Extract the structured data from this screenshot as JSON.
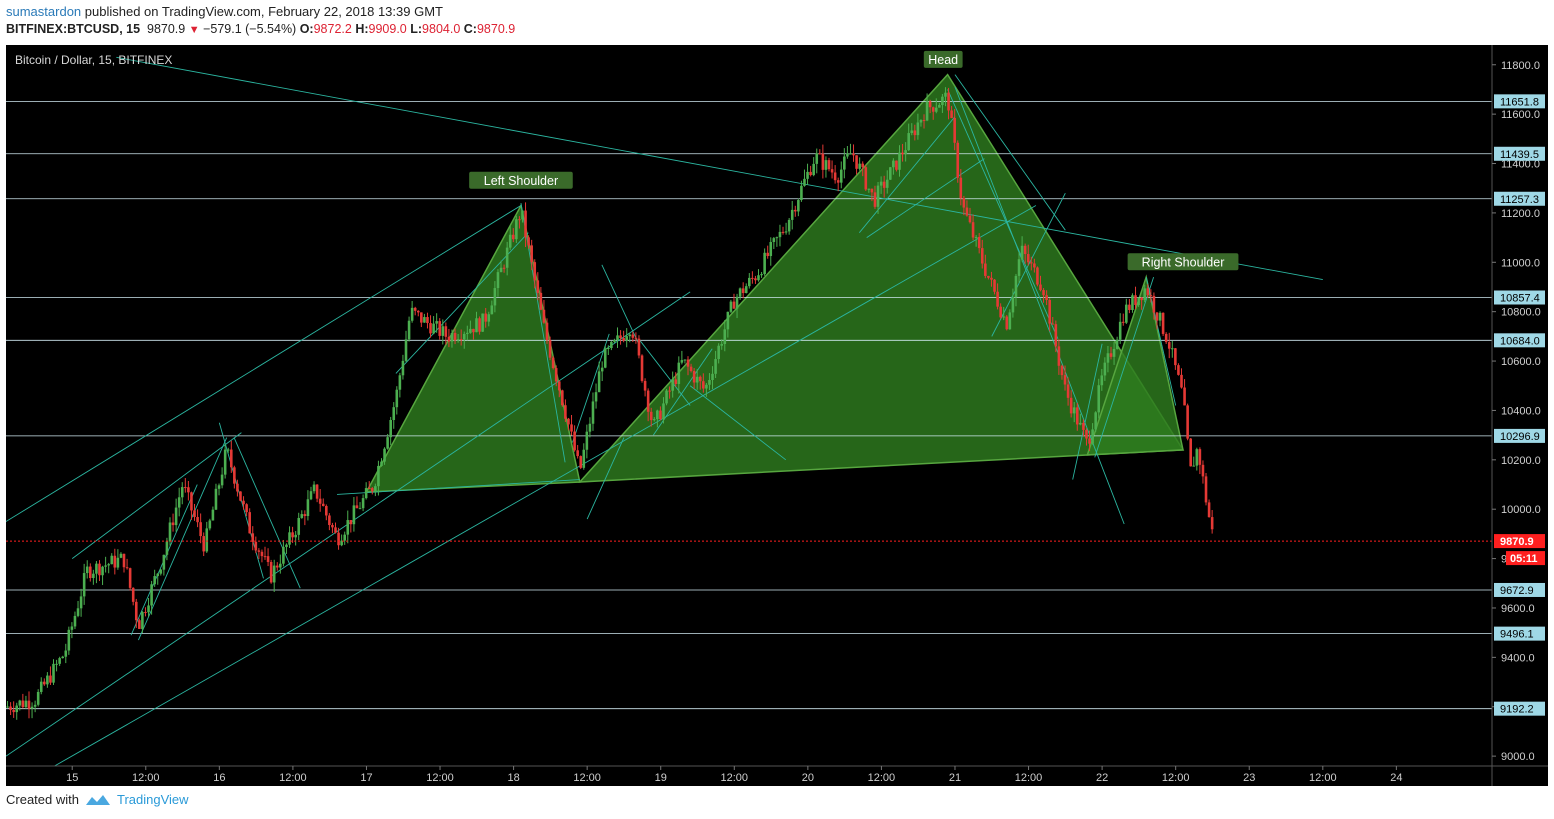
{
  "header": {
    "author": "sumastardon",
    "published_text": "published on TradingView.com, February 22, 2018 13:39 GMT",
    "symbol": "BITFINEX:BTCUSD, 15",
    "last": "9870.9",
    "arrow": "▼",
    "change": "−579.1 (−5.54%)",
    "o_label": "O:",
    "o_val": "9872.2",
    "h_label": "H:",
    "h_val": "9909.0",
    "l_label": "L:",
    "l_val": "9804.0",
    "c_label": "C:",
    "c_val": "9870.9"
  },
  "footer": {
    "created_with": "Created with",
    "brand": "TradingView"
  },
  "colors": {
    "background": "#000000",
    "up": "#4caf50",
    "down": "#e53935",
    "line": "#2bb5a0",
    "hline": "#cfe8f0",
    "pattern_fill": "#2e7d1e",
    "label_bg": "#3a6a2a",
    "price_tag": "#9fd8e6",
    "current_tag": "#ff1f1f"
  },
  "chart_data": {
    "type": "candlestick",
    "title": "Bitcoin / Dollar, 15, BITFINEX",
    "ylim": [
      8960,
      11880
    ],
    "yticks": [
      9000,
      9200,
      9400,
      9600,
      9800,
      10000,
      10200,
      10400,
      10600,
      10800,
      11000,
      11200,
      11400,
      11600,
      11800
    ],
    "ytick_labels": [
      "9000.0",
      "9200.0",
      "9400.0",
      "9600.0",
      "9800.0",
      "10000.0",
      "10200.0",
      "10400.0",
      "10600.0",
      "10800.0",
      "11000.0",
      "11200.0",
      "11400.0",
      "11600.0",
      "11800.0"
    ],
    "xlim": [
      14.55,
      24.65
    ],
    "xticks": [
      15,
      15.5,
      16,
      16.5,
      17,
      17.5,
      18,
      18.5,
      19,
      19.5,
      20,
      20.5,
      21,
      21.5,
      22,
      22.5,
      23,
      23.5,
      24
    ],
    "xtick_labels": [
      "15",
      "12:00",
      "16",
      "12:00",
      "17",
      "12:00",
      "18",
      "12:00",
      "19",
      "12:00",
      "20",
      "12:00",
      "21",
      "12:00",
      "22",
      "12:00",
      "23",
      "12:00",
      "24"
    ],
    "price_path": [
      [
        14.55,
        9200
      ],
      [
        14.75,
        9230
      ],
      [
        14.95,
        9420
      ],
      [
        15.1,
        9750
      ],
      [
        15.35,
        9800
      ],
      [
        15.45,
        9530
      ],
      [
        15.6,
        9780
      ],
      [
        15.75,
        10100
      ],
      [
        15.9,
        9850
      ],
      [
        16.05,
        10240
      ],
      [
        16.2,
        9930
      ],
      [
        16.35,
        9730
      ],
      [
        16.5,
        9900
      ],
      [
        16.65,
        10080
      ],
      [
        16.8,
        9880
      ],
      [
        17.05,
        10100
      ],
      [
        17.2,
        10450
      ],
      [
        17.3,
        10800
      ],
      [
        17.55,
        10700
      ],
      [
        17.8,
        10760
      ],
      [
        18.05,
        11210
      ],
      [
        18.2,
        10750
      ],
      [
        18.35,
        10400
      ],
      [
        18.45,
        10150
      ],
      [
        18.6,
        10600
      ],
      [
        18.8,
        10750
      ],
      [
        18.95,
        10330
      ],
      [
        19.15,
        10600
      ],
      [
        19.3,
        10480
      ],
      [
        19.5,
        10850
      ],
      [
        19.65,
        10950
      ],
      [
        19.85,
        11150
      ],
      [
        20.05,
        11430
      ],
      [
        20.2,
        11350
      ],
      [
        20.3,
        11450
      ],
      [
        20.45,
        11250
      ],
      [
        20.6,
        11400
      ],
      [
        20.8,
        11620
      ],
      [
        20.95,
        11670
      ],
      [
        21.05,
        11230
      ],
      [
        21.2,
        10980
      ],
      [
        21.35,
        10750
      ],
      [
        21.45,
        11050
      ],
      [
        21.6,
        10900
      ],
      [
        21.75,
        10480
      ],
      [
        21.9,
        10260
      ],
      [
        22.0,
        10530
      ],
      [
        22.15,
        10800
      ],
      [
        22.3,
        10900
      ],
      [
        22.45,
        10680
      ],
      [
        22.55,
        10450
      ],
      [
        22.6,
        10150
      ],
      [
        22.65,
        10250
      ],
      [
        22.72,
        9990
      ],
      [
        22.76,
        9871
      ]
    ],
    "horizontal_levels": [
      11651.8,
      11439.5,
      11257.3,
      10857.4,
      10684.0,
      10296.9,
      9672.9,
      9496.1,
      9192.2
    ],
    "level_labels": [
      "11651.8",
      "11439.5",
      "11257.3",
      "10857.4",
      "10684.0",
      "10296.9",
      "9672.9",
      "9496.1",
      "9192.2"
    ],
    "current_price": 9870.9,
    "current_label": "9870.9",
    "countdown_label": "05:11",
    "pattern": [
      {
        "name": "Left Shoulder",
        "points": [
          [
            17.0,
            10070
          ],
          [
            18.05,
            11230
          ],
          [
            18.45,
            10110
          ]
        ]
      },
      {
        "name": "Head",
        "points": [
          [
            18.45,
            10110
          ],
          [
            20.95,
            11760
          ],
          [
            22.55,
            10240
          ]
        ]
      },
      {
        "name": "Right Shoulder",
        "points": [
          [
            21.9,
            10220
          ],
          [
            22.3,
            10940
          ],
          [
            22.55,
            10240
          ]
        ]
      }
    ],
    "annotations": [
      "Left Shoulder",
      "Head",
      "Right Shoulder"
    ],
    "trendlines": [
      [
        [
          14.55,
          9950
        ],
        [
          18.05,
          11230
        ]
      ],
      [
        [
          14.55,
          9000
        ],
        [
          19.2,
          10880
        ]
      ],
      [
        [
          14.88,
          8960
        ],
        [
          21.55,
          11230
        ]
      ],
      [
        [
          15.0,
          9800
        ],
        [
          16.15,
          10310
        ]
      ],
      [
        [
          16.1,
          10290
        ],
        [
          16.55,
          9680
        ]
      ],
      [
        [
          15.45,
          9470
        ],
        [
          16.05,
          10290
        ]
      ],
      [
        [
          15.4,
          9490
        ],
        [
          15.85,
          10100
        ]
      ],
      [
        [
          16.0,
          10350
        ],
        [
          16.3,
          9720
        ]
      ],
      [
        [
          17.2,
          10550
        ],
        [
          18.1,
          11120
        ]
      ],
      [
        [
          18.05,
          11240
        ],
        [
          18.35,
          10190
        ]
      ],
      [
        [
          18.5,
          9960
        ],
        [
          18.75,
          10290
        ]
      ],
      [
        [
          18.4,
          10270
        ],
        [
          18.65,
          10710
        ]
      ],
      [
        [
          18.6,
          10990
        ],
        [
          18.85,
          10670
        ]
      ],
      [
        [
          18.85,
          10690
        ],
        [
          19.2,
          10420
        ]
      ],
      [
        [
          19.2,
          10500
        ],
        [
          19.85,
          10200
        ]
      ],
      [
        [
          18.95,
          10300
        ],
        [
          19.35,
          10650
        ]
      ],
      [
        [
          20.4,
          11100
        ],
        [
          21.2,
          11420
        ]
      ],
      [
        [
          20.35,
          11120
        ],
        [
          21.0,
          11590
        ]
      ],
      [
        [
          21.0,
          11760
        ],
        [
          21.75,
          11130
        ]
      ],
      [
        [
          21.0,
          11710
        ],
        [
          22.15,
          9940
        ]
      ],
      [
        [
          20.95,
          11700
        ],
        [
          21.7,
          10690
        ]
      ],
      [
        [
          21.25,
          10700
        ],
        [
          21.75,
          11280
        ]
      ],
      [
        [
          21.8,
          10120
        ],
        [
          22.0,
          10670
        ]
      ],
      [
        [
          21.95,
          10210
        ],
        [
          22.35,
          10940
        ]
      ],
      [
        [
          22.3,
          10940
        ],
        [
          22.5,
          10420
        ]
      ],
      [
        [
          15.3,
          11830
        ],
        [
          23.5,
          10930
        ]
      ],
      [
        [
          16.8,
          10060
        ],
        [
          18.45,
          10120
        ]
      ]
    ]
  }
}
